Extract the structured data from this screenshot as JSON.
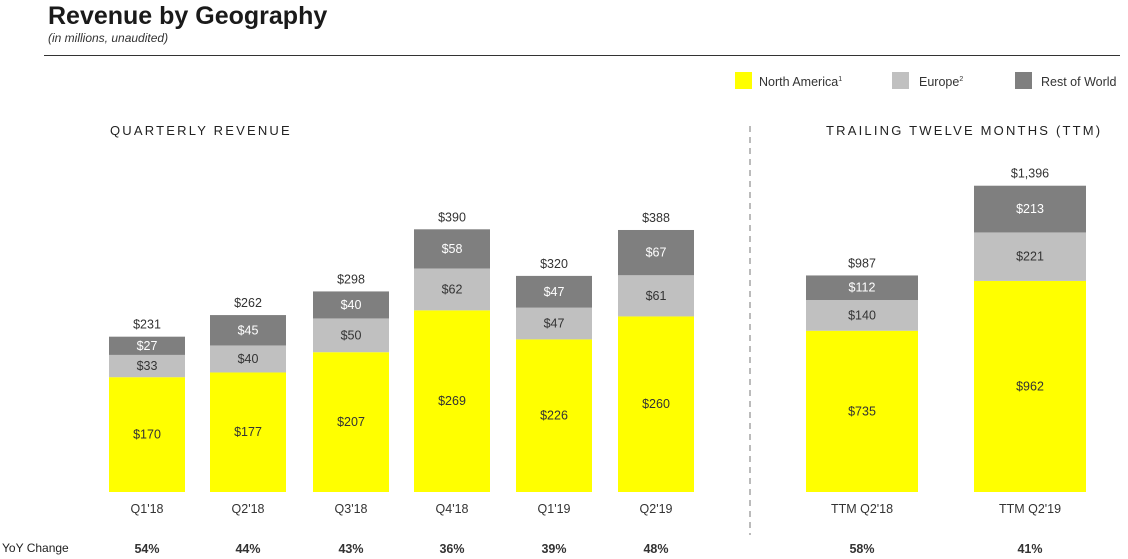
{
  "header": {
    "title": "Revenue by Geography",
    "subtitle": "(in millions, unaudited)"
  },
  "legend": [
    {
      "label": "North America",
      "sup": "1",
      "color": "#ffff00"
    },
    {
      "label": "Europe",
      "sup": "2",
      "color": "#c0c0c0"
    },
    {
      "label": "Rest of World",
      "sup": "",
      "color": "#7f7f7f"
    }
  ],
  "sections": {
    "quarterly": "QUARTERLY REVENUE",
    "ttm": "TRAILING TWELVE MONTHS (TTM)"
  },
  "yoy_label": "YoY Change",
  "chart_data": [
    {
      "type": "bar",
      "stacked": true,
      "title": "QUARTERLY REVENUE",
      "categories": [
        "Q1'18",
        "Q2'18",
        "Q3'18",
        "Q4'18",
        "Q1'19",
        "Q2'19"
      ],
      "series": [
        {
          "name": "North America",
          "values": [
            170,
            177,
            207,
            269,
            226,
            260
          ],
          "labels": [
            "$170",
            "$177",
            "$207",
            "$269",
            "$226",
            "$260"
          ],
          "color": "#ffff00"
        },
        {
          "name": "Europe",
          "values": [
            33,
            40,
            50,
            62,
            47,
            61
          ],
          "labels": [
            "$33",
            "$40",
            "$50",
            "$62",
            "$47",
            "$61"
          ],
          "color": "#c0c0c0"
        },
        {
          "name": "Rest of World",
          "values": [
            27,
            45,
            40,
            58,
            47,
            67
          ],
          "labels": [
            "$27",
            "$45",
            "$40",
            "$58",
            "$47",
            "$67"
          ],
          "color": "#7f7f7f"
        }
      ],
      "totals": [
        "$231",
        "$262",
        "$298",
        "$390",
        "$320",
        "$388"
      ],
      "yoy": [
        "54%",
        "44%",
        "43%",
        "36%",
        "39%",
        "48%"
      ]
    },
    {
      "type": "bar",
      "stacked": true,
      "title": "TRAILING TWELVE MONTHS (TTM)",
      "categories": [
        "TTM Q2'18",
        "TTM Q2'19"
      ],
      "series": [
        {
          "name": "North America",
          "values": [
            735,
            962
          ],
          "labels": [
            "$735",
            "$962"
          ],
          "color": "#ffff00"
        },
        {
          "name": "Europe",
          "values": [
            140,
            221
          ],
          "labels": [
            "$140",
            "$221"
          ],
          "color": "#c0c0c0"
        },
        {
          "name": "Rest of World",
          "values": [
            112,
            213
          ],
          "labels": [
            "$112",
            "$213"
          ],
          "color": "#7f7f7f"
        }
      ],
      "totals": [
        "$987",
        "$1,396"
      ],
      "yoy": [
        "58%",
        "41%"
      ]
    }
  ]
}
